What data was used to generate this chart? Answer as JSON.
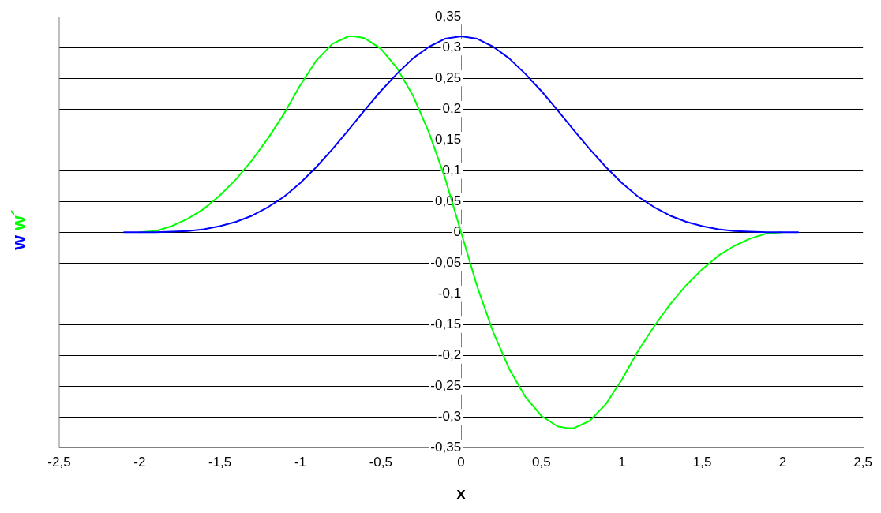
{
  "chart_data": {
    "type": "line",
    "xlabel": "x",
    "xlim": [
      -2.5,
      2.5
    ],
    "ylim": [
      -0.35,
      0.35
    ],
    "xticks": [
      {
        "value": -2.5,
        "label": "-2,5"
      },
      -2,
      {
        "value": -1.5,
        "label": "-1,5"
      },
      -1,
      {
        "value": -0.5,
        "label": "-0,5"
      },
      0,
      {
        "value": 0.5,
        "label": "0,5"
      },
      1,
      {
        "value": 1.5,
        "label": "1,5"
      },
      2,
      {
        "value": 2.5,
        "label": "2,5"
      }
    ],
    "yticks": [
      {
        "value": -0.35,
        "label": "-0,35"
      },
      {
        "value": -0.3,
        "label": "-0,3"
      },
      {
        "value": -0.25,
        "label": "-0,25"
      },
      {
        "value": -0.2,
        "label": "-0,2"
      },
      {
        "value": -0.15,
        "label": "-0,15"
      },
      {
        "value": -0.1,
        "label": "-0,1"
      },
      {
        "value": -0.05,
        "label": "-0,05"
      },
      0,
      {
        "value": 0.05,
        "label": "0,05"
      },
      {
        "value": 0.1,
        "label": "0,1"
      },
      {
        "value": 0.15,
        "label": "0,15"
      },
      {
        "value": 0.2,
        "label": "0,2"
      },
      {
        "value": 0.25,
        "label": "0,25"
      },
      {
        "value": 0.3,
        "label": "0,3"
      },
      {
        "value": 0.35,
        "label": "0,35"
      }
    ],
    "grid": "y",
    "marker": "none",
    "line_style": "solid",
    "series": [
      {
        "name": "w",
        "color": "#0000ff",
        "x": [
          -2.1,
          -2,
          -1.9,
          -1.8,
          -1.7,
          -1.6,
          -1.5,
          -1.4,
          -1.3,
          -1.2,
          -1.1,
          -1,
          -0.9,
          -0.8,
          -0.7,
          -0.6,
          -0.5,
          -0.4,
          -0.3,
          -0.2,
          -0.1,
          0,
          0.1,
          0.2,
          0.3,
          0.4,
          0.5,
          0.6,
          0.7,
          0.8,
          0.9,
          1,
          1.1,
          1.2,
          1.3,
          1.4,
          1.5,
          1.6,
          1.7,
          1.8,
          1.9,
          2,
          2.1
        ],
        "values": [
          0,
          0,
          0,
          0.001,
          0.002,
          0.005,
          0.01,
          0.017,
          0.027,
          0.041,
          0.058,
          0.08,
          0.106,
          0.135,
          0.166,
          0.198,
          0.229,
          0.257,
          0.282,
          0.301,
          0.314,
          0.318,
          0.314,
          0.301,
          0.282,
          0.257,
          0.229,
          0.198,
          0.166,
          0.135,
          0.106,
          0.08,
          0.058,
          0.041,
          0.027,
          0.017,
          0.01,
          0.005,
          0.002,
          0.001,
          0,
          0,
          0
        ]
      },
      {
        "name": "w´",
        "color": "#00ff00",
        "x": [
          -2,
          -1.9,
          -1.8,
          -1.7,
          -1.6,
          -1.5,
          -1.4,
          -1.3,
          -1.2,
          -1.1,
          -1,
          -0.9,
          -0.8,
          -0.7,
          -0.667,
          -0.6,
          -0.5,
          -0.4,
          -0.3,
          -0.2,
          -0.1,
          0,
          0.1,
          0.2,
          0.3,
          0.4,
          0.5,
          0.6,
          0.667,
          0.7,
          0.8,
          0.9,
          1,
          1.1,
          1.2,
          1.3,
          1.4,
          1.5,
          1.6,
          1.7,
          1.8,
          1.9,
          2
        ],
        "values": [
          0,
          0.002,
          0.01,
          0.022,
          0.038,
          0.06,
          0.086,
          0.117,
          0.153,
          0.193,
          0.239,
          0.279,
          0.306,
          0.318,
          0.318,
          0.315,
          0.298,
          0.267,
          0.222,
          0.162,
          0.088,
          0,
          -0.088,
          -0.162,
          -0.222,
          -0.267,
          -0.298,
          -0.315,
          -0.318,
          -0.318,
          -0.306,
          -0.279,
          -0.239,
          -0.193,
          -0.153,
          -0.117,
          -0.086,
          -0.06,
          -0.038,
          -0.022,
          -0.01,
          -0.002,
          0
        ]
      }
    ]
  }
}
